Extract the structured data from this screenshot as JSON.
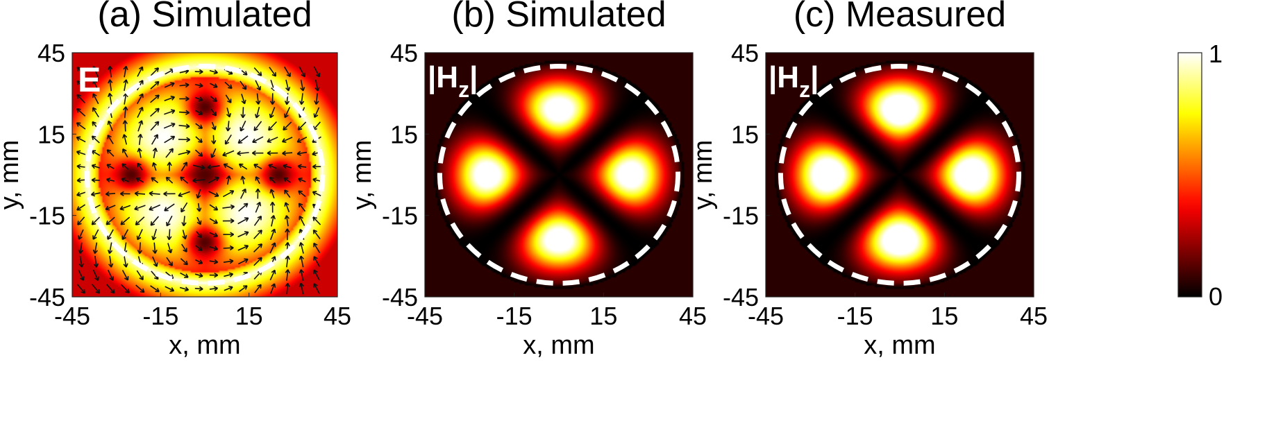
{
  "chart_data": {
    "type": "heatmap",
    "colormap": "hot",
    "colorbar": {
      "min": 0,
      "max": 1,
      "tick_labels": [
        "1",
        "0"
      ]
    },
    "panels": [
      {
        "title": "(a) Simulated",
        "label": "E",
        "field": "electric field magnitude with in-plane vector arrows",
        "pattern": "null points at center and at (0,±25), (±25,0); max along diagonals and rim",
        "xlabel": "x, mm",
        "ylabel": "y, mm",
        "xlim": [
          -45,
          45
        ],
        "ylim": [
          -45,
          45
        ],
        "xticks": [
          "-45",
          "-15",
          "15",
          "45"
        ],
        "yticks": [
          "45",
          "15",
          "-15",
          "-45"
        ],
        "boundary_radius_mm": 40,
        "arrows": true
      },
      {
        "title": "(b) Simulated",
        "label_main": "|H",
        "label_sub": "z",
        "label_end": "|",
        "field": "|Hz| magnitude",
        "pattern": "four lobes at (0,±25), (±25,0); nodal lines along diagonals",
        "xlabel": "x, mm",
        "ylabel": "y, mm",
        "xlim": [
          -45,
          45
        ],
        "ylim": [
          -45,
          45
        ],
        "xticks": [
          "-45",
          "-15",
          "15",
          "45"
        ],
        "yticks": [
          "45",
          "15",
          "-15",
          "-45"
        ],
        "boundary_radius_mm": 40,
        "arrows": false
      },
      {
        "title": "(c) Measured",
        "label_main": "|H",
        "label_sub": "z",
        "label_end": "|",
        "field": "|Hz| magnitude",
        "pattern": "four broad lobes at (0,±25), (±25,0); nodal lines along diagonals",
        "xlabel": "x, mm",
        "ylabel": "y, mm",
        "xlim": [
          -45,
          45
        ],
        "ylim": [
          -45,
          45
        ],
        "xticks": [
          "-45",
          "-15",
          "15",
          "45"
        ],
        "yticks": [
          "45",
          "15",
          "-15",
          "-45"
        ],
        "boundary_radius_mm": 40,
        "arrows": false
      }
    ]
  }
}
